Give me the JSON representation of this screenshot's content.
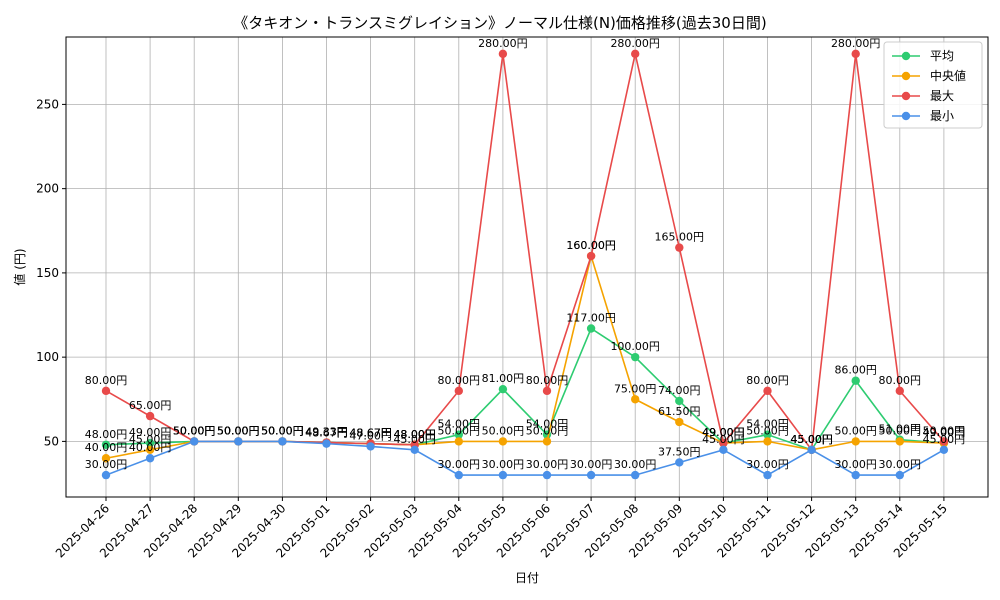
{
  "chart_data": {
    "type": "line",
    "title": "《タキオン・トランスミグレイション》ノーマル仕様(N)価格推移(過去30日間)",
    "xlabel": "日付",
    "ylabel": "値 (円)",
    "x": [
      "2025-04-26",
      "2025-04-27",
      "2025-04-28",
      "2025-04-29",
      "2025-04-30",
      "2025-05-01",
      "2025-05-02",
      "2025-05-03",
      "2025-05-04",
      "2025-05-05",
      "2025-05-06",
      "2025-05-07",
      "2025-05-08",
      "2025-05-09",
      "2025-05-10",
      "2025-05-11",
      "2025-05-12",
      "2025-05-13",
      "2025-05-14",
      "2025-05-15"
    ],
    "ylim": [
      17,
      290
    ],
    "yticks": [
      50,
      100,
      150,
      200,
      250
    ],
    "grid": true,
    "legend_position": "top-right",
    "label_suffix": "円",
    "series": [
      {
        "name": "平均",
        "color": "#2ecc71",
        "values": [
          48,
          49,
          50,
          50,
          50,
          49.33,
          48.67,
          48,
          54,
          81,
          54,
          117,
          100,
          74,
          49,
          54,
          45,
          86,
          51,
          49
        ]
      },
      {
        "name": "中央値",
        "color": "#f5a300",
        "values": [
          40,
          45,
          50,
          50,
          50,
          49.33,
          48.67,
          48,
          50,
          50,
          50,
          160,
          75,
          61.5,
          49,
          50,
          45,
          50,
          50,
          49
        ]
      },
      {
        "name": "最大",
        "color": "#e84a4a",
        "values": [
          80,
          65,
          50,
          50,
          50,
          49.33,
          48.67,
          48,
          80,
          280,
          80,
          160,
          280,
          165,
          49,
          80,
          45,
          280,
          80,
          50
        ]
      },
      {
        "name": "最小",
        "color": "#4a90e8",
        "values": [
          30,
          40,
          50,
          50,
          50,
          48.67,
          47,
          45,
          30,
          30,
          30,
          30,
          30,
          37.5,
          45,
          30,
          45,
          30,
          30,
          45
        ]
      }
    ]
  }
}
